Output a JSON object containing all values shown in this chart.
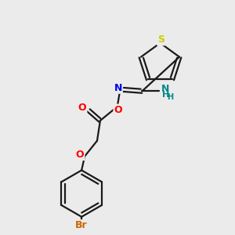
{
  "background_color": "#ebebeb",
  "bond_color": "#1a1a1a",
  "atom_colors": {
    "S": "#cccc00",
    "O": "#ff0000",
    "N": "#0000ee",
    "Br": "#cc6600",
    "NH": "#008888",
    "C": "#1a1a1a"
  },
  "figsize": [
    3.0,
    3.0
  ],
  "dpi": 100
}
